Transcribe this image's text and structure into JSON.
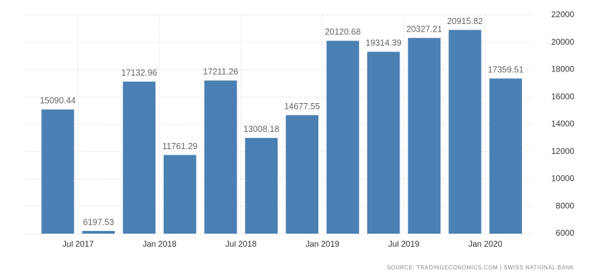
{
  "chart_data": {
    "type": "bar",
    "categories": [
      "Jul 2017",
      null,
      "Jan 2018",
      null,
      "Jul 2018",
      null,
      "Jan 2019",
      null,
      "Jul 2019",
      null,
      "Jan 2020",
      null
    ],
    "values": [
      15090.44,
      6197.53,
      17132.96,
      11761.29,
      17211.26,
      13008.18,
      14677.55,
      20120.68,
      19314.39,
      20327.21,
      20915.82,
      17359.51
    ],
    "color": "#4a80b3",
    "ylim": [
      6000,
      22000
    ],
    "yticks": [
      6000,
      8000,
      10000,
      12000,
      14000,
      16000,
      18000,
      20000,
      22000
    ],
    "grid": true,
    "source": "SOURCE: TRADINGECONOMICS.COM | SWISS NATIONAL BANK"
  }
}
